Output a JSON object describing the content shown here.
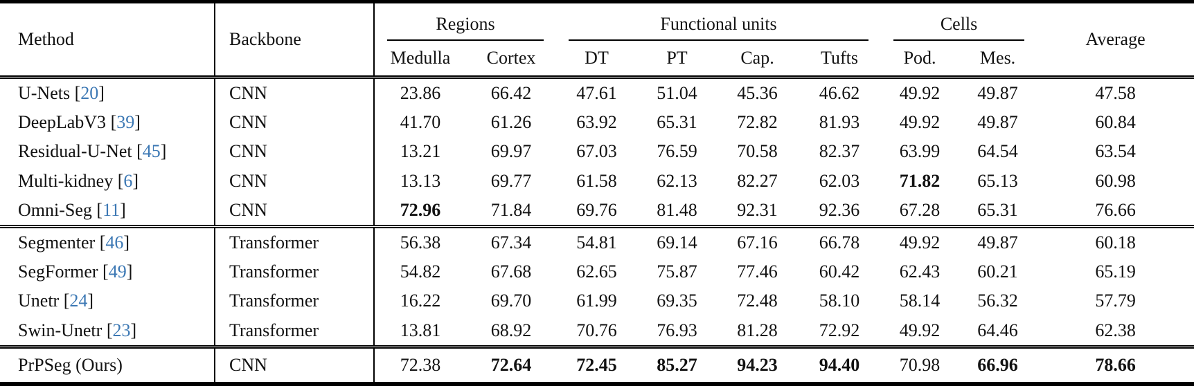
{
  "colors": {
    "citation": "#3c78b4",
    "text": "#121212",
    "rule": "#000000"
  },
  "table": {
    "headers": {
      "method": "Method",
      "backbone": "Backbone",
      "average": "Average"
    },
    "col_groups": [
      {
        "label": "Regions",
        "cols": [
          "Medulla",
          "Cortex"
        ]
      },
      {
        "label": "Functional units",
        "cols": [
          "DT",
          "PT",
          "Cap.",
          "Tufts"
        ]
      },
      {
        "label": "Cells",
        "cols": [
          "Pod.",
          "Mes."
        ]
      }
    ],
    "row_groups": [
      {
        "name": "cnn-methods",
        "rows": [
          {
            "method": "U-Nets",
            "citation": "20",
            "backbone": "CNN",
            "values": [
              "23.86",
              "66.42",
              "47.61",
              "51.04",
              "45.36",
              "46.62",
              "49.92",
              "49.87",
              "47.58"
            ],
            "bold": [
              0,
              0,
              0,
              0,
              0,
              0,
              0,
              0,
              0
            ]
          },
          {
            "method": "DeepLabV3",
            "citation": "39",
            "backbone": "CNN",
            "values": [
              "41.70",
              "61.26",
              "63.92",
              "65.31",
              "72.82",
              "81.93",
              "49.92",
              "49.87",
              "60.84"
            ],
            "bold": [
              0,
              0,
              0,
              0,
              0,
              0,
              0,
              0,
              0
            ]
          },
          {
            "method": "Residual-U-Net",
            "citation": "45",
            "backbone": "CNN",
            "values": [
              "13.21",
              "69.97",
              "67.03",
              "76.59",
              "70.58",
              "82.37",
              "63.99",
              "64.54",
              "63.54"
            ],
            "bold": [
              0,
              0,
              0,
              0,
              0,
              0,
              0,
              0,
              0
            ]
          },
          {
            "method": "Multi-kidney",
            "citation": "6",
            "backbone": "CNN",
            "values": [
              "13.13",
              "69.77",
              "61.58",
              "62.13",
              "82.27",
              "62.03",
              "71.82",
              "65.13",
              "60.98"
            ],
            "bold": [
              0,
              0,
              0,
              0,
              0,
              0,
              1,
              0,
              0
            ]
          },
          {
            "method": "Omni-Seg",
            "citation": "11",
            "backbone": "CNN",
            "values": [
              "72.96",
              "71.84",
              "69.76",
              "81.48",
              "92.31",
              "92.36",
              "67.28",
              "65.31",
              "76.66"
            ],
            "bold": [
              1,
              0,
              0,
              0,
              0,
              0,
              0,
              0,
              0
            ]
          }
        ]
      },
      {
        "name": "transformer-methods",
        "rows": [
          {
            "method": "Segmenter",
            "citation": "46",
            "backbone": "Transformer",
            "values": [
              "56.38",
              "67.34",
              "54.81",
              "69.14",
              "67.16",
              "66.78",
              "49.92",
              "49.87",
              "60.18"
            ],
            "bold": [
              0,
              0,
              0,
              0,
              0,
              0,
              0,
              0,
              0
            ]
          },
          {
            "method": "SegFormer",
            "citation": "49",
            "backbone": "Transformer",
            "values": [
              "54.82",
              "67.68",
              "62.65",
              "75.87",
              "77.46",
              "60.42",
              "62.43",
              "60.21",
              "65.19"
            ],
            "bold": [
              0,
              0,
              0,
              0,
              0,
              0,
              0,
              0,
              0
            ]
          },
          {
            "method": "Unetr",
            "citation": "24",
            "backbone": "Transformer",
            "values": [
              "16.22",
              "69.70",
              "61.99",
              "69.35",
              "72.48",
              "58.10",
              "58.14",
              "56.32",
              "57.79"
            ],
            "bold": [
              0,
              0,
              0,
              0,
              0,
              0,
              0,
              0,
              0
            ]
          },
          {
            "method": "Swin-Unetr",
            "citation": "23",
            "backbone": "Transformer",
            "values": [
              "13.81",
              "68.92",
              "70.76",
              "76.93",
              "81.28",
              "72.92",
              "49.92",
              "64.46",
              "62.38"
            ],
            "bold": [
              0,
              0,
              0,
              0,
              0,
              0,
              0,
              0,
              0
            ]
          }
        ]
      },
      {
        "name": "ours",
        "rows": [
          {
            "method": "PrPSeg (Ours)",
            "citation": null,
            "backbone": "CNN",
            "values": [
              "72.38",
              "72.64",
              "72.45",
              "85.27",
              "94.23",
              "94.40",
              "70.98",
              "66.96",
              "78.66"
            ],
            "bold": [
              0,
              1,
              1,
              1,
              1,
              1,
              0,
              1,
              1
            ]
          }
        ]
      }
    ]
  }
}
